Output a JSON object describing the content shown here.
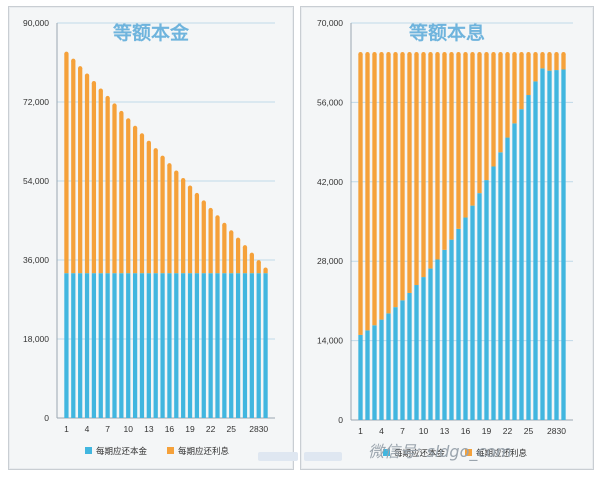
{
  "colors": {
    "principal": "#41b6df",
    "interest": "#f5a13a",
    "grid": "#bfd9e8",
    "axis": "#9aa6b0",
    "title": "#6fb4dd"
  },
  "chart_data": [
    {
      "type": "bar",
      "stacked": true,
      "title": "等额本金",
      "xlabel": "",
      "ylabel": "",
      "ylim": [
        0,
        90000
      ],
      "yticks": [
        "0",
        "18,000",
        "36,000",
        "54,000",
        "72,000",
        "90,000"
      ],
      "ytick_values": [
        0,
        18000,
        36000,
        54000,
        72000,
        90000
      ],
      "xtick_labels": [
        "1",
        "4",
        "7",
        "10",
        "13",
        "16",
        "19",
        "22",
        "25",
        "2830"
      ],
      "grid": true,
      "legend_position": "bottom",
      "categories": [
        1,
        2,
        3,
        4,
        5,
        6,
        7,
        8,
        9,
        10,
        11,
        12,
        13,
        14,
        15,
        16,
        17,
        18,
        19,
        20,
        21,
        22,
        23,
        24,
        25,
        26,
        27,
        28,
        29,
        30
      ],
      "series": [
        {
          "name": "每期应还本金",
          "values": [
            33000,
            33000,
            33000,
            33000,
            33000,
            33000,
            33000,
            33000,
            33000,
            33000,
            33000,
            33000,
            33000,
            33000,
            33000,
            33000,
            33000,
            33000,
            33000,
            33000,
            33000,
            33000,
            33000,
            33000,
            33000,
            33000,
            33000,
            33000,
            33000,
            33000
          ]
        },
        {
          "name": "每期应还利息",
          "values": [
            50000,
            48400,
            46700,
            45000,
            43300,
            41600,
            39900,
            38200,
            36500,
            34800,
            33100,
            31400,
            29700,
            28000,
            26300,
            24600,
            22900,
            21200,
            19500,
            17800,
            16100,
            14400,
            12700,
            11000,
            9300,
            7600,
            5900,
            4200,
            2500,
            800
          ]
        }
      ]
    },
    {
      "type": "bar",
      "stacked": true,
      "title": "等额本息",
      "xlabel": "",
      "ylabel": "",
      "ylim": [
        0,
        70000
      ],
      "yticks": [
        "0",
        "14,000",
        "28,000",
        "42,000",
        "56,000",
        "70,000"
      ],
      "ytick_values": [
        0,
        14000,
        28000,
        42000,
        56000,
        70000
      ],
      "xtick_labels": [
        "1",
        "4",
        "7",
        "10",
        "13",
        "16",
        "19",
        "22",
        "25",
        "2830"
      ],
      "grid": true,
      "legend_position": "bottom",
      "categories": [
        1,
        2,
        3,
        4,
        5,
        6,
        7,
        8,
        9,
        10,
        11,
        12,
        13,
        14,
        15,
        16,
        17,
        18,
        19,
        20,
        21,
        22,
        23,
        24,
        25,
        26,
        27,
        28,
        29,
        30
      ],
      "series": [
        {
          "name": "每期应还本金",
          "values": [
            15000,
            15800,
            16700,
            17700,
            18800,
            19900,
            21100,
            22400,
            23800,
            25200,
            26700,
            28300,
            30000,
            31800,
            33700,
            35700,
            37800,
            40000,
            42300,
            44700,
            47200,
            49800,
            52300,
            54800,
            57300,
            59700,
            62000,
            61600,
            61700,
            61800
          ]
        },
        {
          "name": "每期应还利息",
          "values": [
            49500,
            48700,
            47800,
            46800,
            45700,
            44600,
            43400,
            42100,
            40700,
            39300,
            37800,
            36200,
            34500,
            32700,
            30800,
            28800,
            26700,
            24500,
            22200,
            19800,
            17300,
            14700,
            12200,
            9700,
            7200,
            4800,
            2500,
            2900,
            2800,
            2700
          ]
        }
      ]
    }
  ],
  "watermark": {
    "text": "微信号: sldgo_com"
  }
}
